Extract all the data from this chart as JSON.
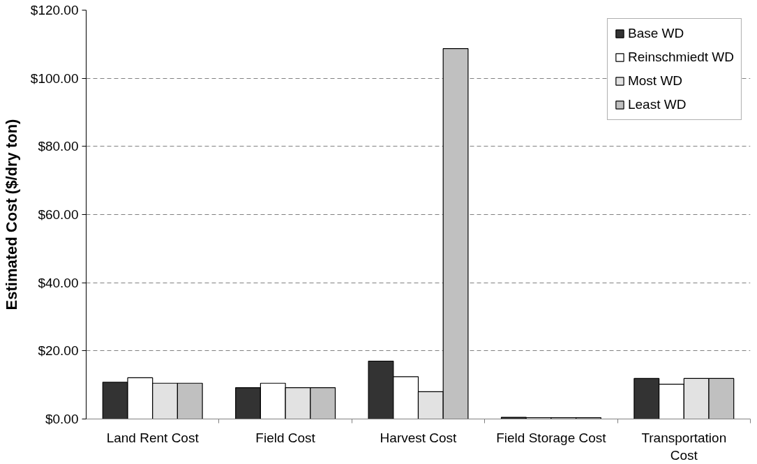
{
  "chart_data": {
    "type": "bar",
    "ylabel": "Estimated Cost ($/dry ton)",
    "categories": [
      "Land Rent Cost",
      "Field Cost",
      "Harvest Cost",
      "Field Storage Cost",
      "Transportation Cost"
    ],
    "series": [
      {
        "name": "Base WD",
        "color": "#333333",
        "values": [
          10.8,
          9.2,
          17.0,
          0.5,
          11.9
        ]
      },
      {
        "name": "Reinschmiedt WD",
        "color": "#ffffff",
        "values": [
          12.1,
          10.5,
          12.4,
          0.4,
          10.2
        ]
      },
      {
        "name": "Most WD",
        "color": "#e2e2e2",
        "values": [
          10.5,
          9.2,
          8.0,
          0.4,
          11.9
        ]
      },
      {
        "name": "Least WD",
        "color": "#c0c0c0",
        "values": [
          10.5,
          9.2,
          108.7,
          0.4,
          11.9
        ]
      }
    ],
    "ylim": [
      0,
      120
    ],
    "yticks": [
      {
        "value": 0,
        "label": "$0.00"
      },
      {
        "value": 20,
        "label": "$20.00"
      },
      {
        "value": 40,
        "label": "$40.00"
      },
      {
        "value": 60,
        "label": "$60.00"
      },
      {
        "value": 80,
        "label": "$80.00"
      },
      {
        "value": 100,
        "label": "$100.00"
      },
      {
        "value": 120,
        "label": "$120.00"
      }
    ],
    "grid": "y",
    "legend": "top right"
  }
}
